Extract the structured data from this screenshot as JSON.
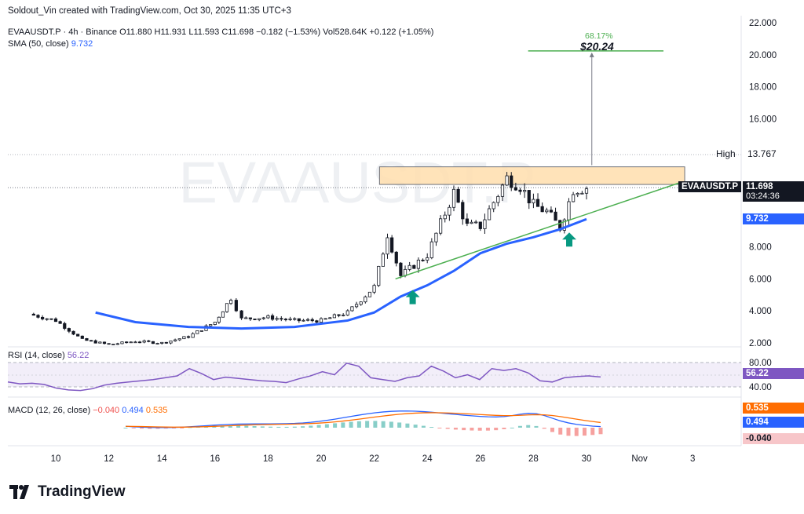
{
  "attribution": "Soldout_Vin created with TradingView.com, Oct 30, 2025 11:35 UTC+3",
  "ticker_line": {
    "symbol": "EVAAUSDT.P · 4h · Binance",
    "ohlc": "O11.880 H11.931 L11.593 C11.698 −0.182 (−1.53%)",
    "vol": "Vol528.64K +0.122 (+1.05%)"
  },
  "sma": {
    "label": "SMA (50, close)",
    "value": "9.732"
  },
  "watermark": "EVAAUSDT.P",
  "price_axis": {
    "ticks": [
      "22.000",
      "20.000",
      "18.000",
      "16.000",
      "8.000",
      "6.000",
      "4.000",
      "2.000"
    ]
  },
  "high_label": {
    "text": "High",
    "value": "13.767"
  },
  "price_tag": {
    "symbol": "EVAAUSDT.P",
    "price": "11.698",
    "countdown": "03:24:36"
  },
  "sma_tag": "9.732",
  "target": {
    "percent": "68.17%",
    "price": "$20.24"
  },
  "rsi": {
    "label": "RSI (14, close)",
    "value": "56.22",
    "ticks": [
      "80.00",
      "40.00"
    ],
    "tag": "56.22"
  },
  "macd": {
    "label": "MACD (12, 26, close)",
    "hist_value": "−0.040",
    "macd_value": "0.494",
    "signal_value": "0.535",
    "tags": [
      "0.535",
      "0.494",
      "-0.040"
    ]
  },
  "time_axis": [
    "10",
    "12",
    "14",
    "16",
    "18",
    "20",
    "22",
    "24",
    "26",
    "28",
    "30",
    "Nov",
    "3"
  ],
  "brand": "TradingView",
  "colors": {
    "sma": "#2962ff",
    "trendline": "#4caf50",
    "resistance_fill": "#ffe0b2",
    "rsi": "#7e57c2",
    "macd": "#2962ff",
    "signal": "#ff6d00",
    "hist_up": "#26a69a",
    "hist_down": "#ef5350",
    "arrow": "#089981"
  },
  "chart_data": {
    "type": "candlestick",
    "interval": "4h",
    "x_range": [
      "Oct 9",
      "Nov 3"
    ],
    "ylim": [
      2,
      22
    ],
    "close_path": [
      {
        "date": "Oct 9",
        "close": 3.8
      },
      {
        "date": "Oct 10",
        "close": 3.4
      },
      {
        "date": "Oct 11",
        "close": 2.2
      },
      {
        "date": "Oct 12",
        "close": 1.9
      },
      {
        "date": "Oct 13",
        "close": 2.1
      },
      {
        "date": "Oct 14",
        "close": 2.0
      },
      {
        "date": "Oct 15",
        "close": 2.4
      },
      {
        "date": "Oct 16",
        "close": 3.3
      },
      {
        "date": "Oct 16.6",
        "close": 4.8
      },
      {
        "date": "Oct 17",
        "close": 3.5
      },
      {
        "date": "Oct 18",
        "close": 3.6
      },
      {
        "date": "Oct 19",
        "close": 3.4
      },
      {
        "date": "Oct 20",
        "close": 3.4
      },
      {
        "date": "Oct 21",
        "close": 3.9
      },
      {
        "date": "Oct 22",
        "close": 5.5
      },
      {
        "date": "Oct 22.5",
        "close": 8.8
      },
      {
        "date": "Oct 23",
        "close": 6.2
      },
      {
        "date": "Oct 24",
        "close": 7.5
      },
      {
        "date": "Oct 25",
        "close": 11.4
      },
      {
        "date": "Oct 25.5",
        "close": 9.3
      },
      {
        "date": "Oct 26",
        "close": 9.3
      },
      {
        "date": "Oct 27",
        "close": 12.3
      },
      {
        "date": "Oct 27.5",
        "close": 11.8
      },
      {
        "date": "Oct 28",
        "close": 10.6
      },
      {
        "date": "Oct 28.5",
        "close": 10.2
      },
      {
        "date": "Oct 29",
        "close": 9.2
      },
      {
        "date": "Oct 29.5",
        "close": 11.6
      },
      {
        "date": "Oct 30",
        "close": 11.698
      }
    ],
    "sma50": [
      {
        "date": "Oct 11.5",
        "value": 3.9
      },
      {
        "date": "Oct 13",
        "value": 3.3
      },
      {
        "date": "Oct 15",
        "value": 3.0
      },
      {
        "date": "Oct 17",
        "value": 2.9
      },
      {
        "date": "Oct 19",
        "value": 3.0
      },
      {
        "date": "Oct 21",
        "value": 3.4
      },
      {
        "date": "Oct 22",
        "value": 3.9
      },
      {
        "date": "Oct 23",
        "value": 4.9
      },
      {
        "date": "Oct 24",
        "value": 5.6
      },
      {
        "date": "Oct 25",
        "value": 6.5
      },
      {
        "date": "Oct 26",
        "value": 7.6
      },
      {
        "date": "Oct 27",
        "value": 8.2
      },
      {
        "date": "Oct 28",
        "value": 8.6
      },
      {
        "date": "Oct 29",
        "value": 9.1
      },
      {
        "date": "Oct 30",
        "value": 9.732
      }
    ],
    "support_trendline": [
      {
        "date": "Oct 22.8",
        "value": 6.0
      },
      {
        "date": "Nov 2.5",
        "value": 12.0
      }
    ],
    "resistance_zone": {
      "from": "Oct 22.2",
      "to": "Nov 2.7",
      "low": 11.9,
      "high": 13.0
    },
    "target": {
      "price": 20.24,
      "percent": 68.17
    }
  }
}
